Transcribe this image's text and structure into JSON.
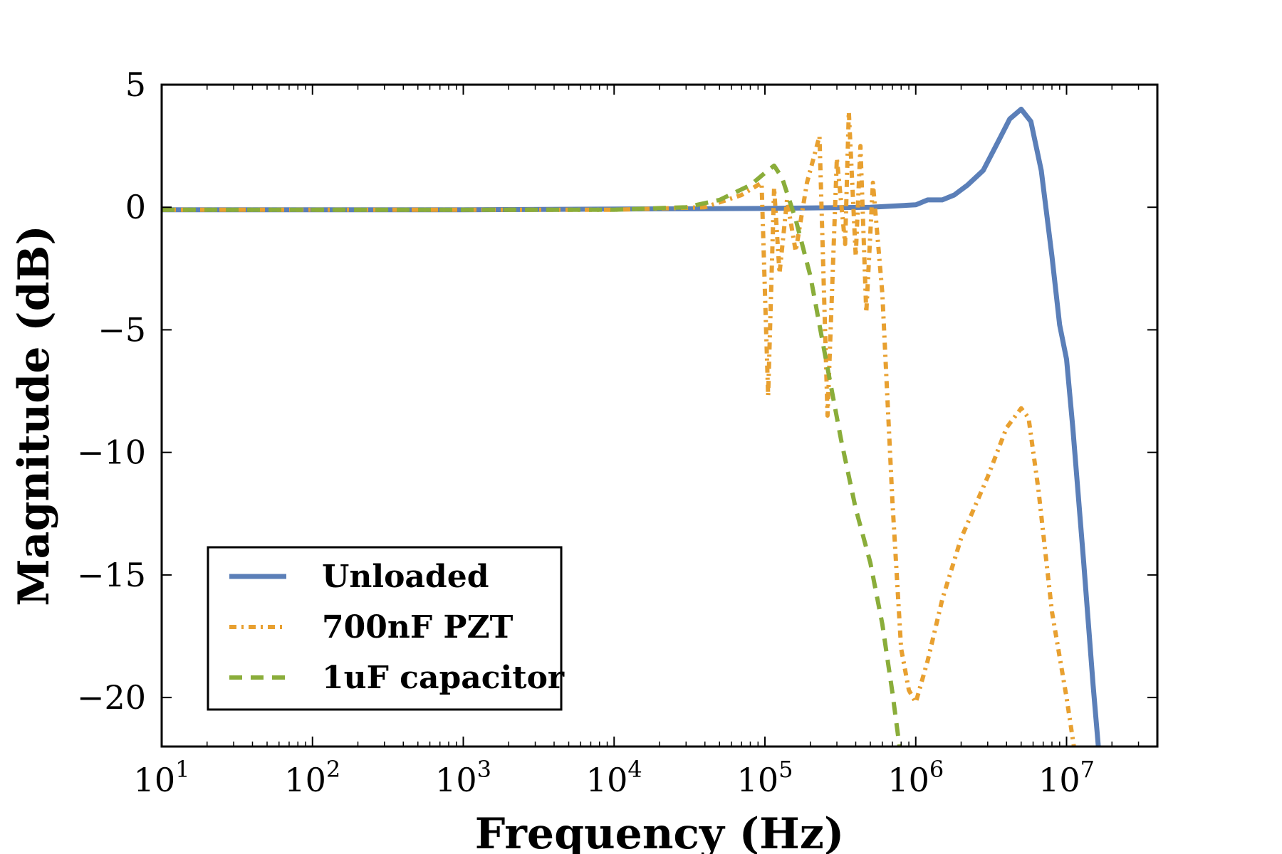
{
  "chart_data": {
    "type": "line",
    "title": "",
    "xlabel": "Frequency (Hz)",
    "ylabel": "Magnitude (dB)",
    "xscale": "log",
    "xlim": [
      10,
      40000000
    ],
    "ylim": [
      -22,
      5
    ],
    "grid": false,
    "legend_position": "lower-left",
    "x_ticks": [
      {
        "base": "10",
        "exp": "1",
        "value": 10
      },
      {
        "base": "10",
        "exp": "2",
        "value": 100
      },
      {
        "base": "10",
        "exp": "3",
        "value": 1000
      },
      {
        "base": "10",
        "exp": "4",
        "value": 10000
      },
      {
        "base": "10",
        "exp": "5",
        "value": 100000
      },
      {
        "base": "10",
        "exp": "6",
        "value": 1000000
      },
      {
        "base": "10",
        "exp": "7",
        "value": 10000000
      }
    ],
    "y_ticks": [
      {
        "label": "5",
        "value": 5
      },
      {
        "label": "0",
        "value": 0
      },
      {
        "label": "−5",
        "value": -5
      },
      {
        "label": "−10",
        "value": -10
      },
      {
        "label": "−15",
        "value": -15
      },
      {
        "label": "−20",
        "value": -20
      }
    ],
    "series": [
      {
        "name": "Unloaded",
        "color": "#5b7fb8",
        "style": "solid",
        "points": [
          [
            10,
            -0.1
          ],
          [
            1000,
            -0.1
          ],
          [
            100000,
            -0.05
          ],
          [
            500000,
            0.0
          ],
          [
            1000000,
            0.1
          ],
          [
            1200000,
            0.3
          ],
          [
            1500000,
            0.3
          ],
          [
            1800000,
            0.5
          ],
          [
            2200000,
            0.9
          ],
          [
            2800000,
            1.5
          ],
          [
            3400000,
            2.5
          ],
          [
            4200000,
            3.6
          ],
          [
            5000000,
            4.0
          ],
          [
            5800000,
            3.5
          ],
          [
            6800000,
            1.5
          ],
          [
            8000000,
            -2.0
          ],
          [
            9000000,
            -4.8
          ],
          [
            10000000,
            -6.2
          ],
          [
            11000000,
            -9.0
          ],
          [
            13000000,
            -14.5
          ],
          [
            15000000,
            -19.5
          ],
          [
            16500000,
            -22.5
          ]
        ]
      },
      {
        "name": "700nF PZT",
        "color": "#e8a030",
        "style": "dashdot",
        "points": [
          [
            10,
            -0.1
          ],
          [
            10000,
            -0.1
          ],
          [
            40000,
            0.0
          ],
          [
            70000,
            0.5
          ],
          [
            95000,
            1.0
          ],
          [
            105000,
            -7.7
          ],
          [
            115000,
            0.8
          ],
          [
            125000,
            -2.7
          ],
          [
            140000,
            0.3
          ],
          [
            160000,
            -1.8
          ],
          [
            190000,
            1.0
          ],
          [
            230000,
            2.9
          ],
          [
            260000,
            -8.5
          ],
          [
            300000,
            2.0
          ],
          [
            340000,
            -1.5
          ],
          [
            360000,
            3.9
          ],
          [
            400000,
            -2.0
          ],
          [
            430000,
            2.5
          ],
          [
            470000,
            -4.3
          ],
          [
            520000,
            1.0
          ],
          [
            600000,
            -3.5
          ],
          [
            700000,
            -12.0
          ],
          [
            800000,
            -18.0
          ],
          [
            900000,
            -19.7
          ],
          [
            1000000,
            -20.2
          ],
          [
            1200000,
            -18.5
          ],
          [
            1500000,
            -16.0
          ],
          [
            2000000,
            -13.5
          ],
          [
            3000000,
            -11.0
          ],
          [
            4000000,
            -9.0
          ],
          [
            5000000,
            -8.2
          ],
          [
            5600000,
            -8.6
          ],
          [
            6500000,
            -11.5
          ],
          [
            8000000,
            -16.5
          ],
          [
            10000000,
            -20.0
          ],
          [
            11500000,
            -22.5
          ]
        ]
      },
      {
        "name": "1uF capacitor",
        "color": "#8aad3a",
        "style": "dashed",
        "points": [
          [
            10,
            -0.1
          ],
          [
            10000,
            -0.1
          ],
          [
            30000,
            0.0
          ],
          [
            50000,
            0.3
          ],
          [
            80000,
            0.9
          ],
          [
            100000,
            1.4
          ],
          [
            115000,
            1.7
          ],
          [
            130000,
            1.2
          ],
          [
            160000,
            -0.5
          ],
          [
            200000,
            -2.8
          ],
          [
            250000,
            -6.0
          ],
          [
            320000,
            -9.5
          ],
          [
            400000,
            -12.3
          ],
          [
            500000,
            -14.5
          ],
          [
            600000,
            -17.0
          ],
          [
            700000,
            -19.8
          ],
          [
            800000,
            -22.5
          ]
        ]
      }
    ]
  }
}
